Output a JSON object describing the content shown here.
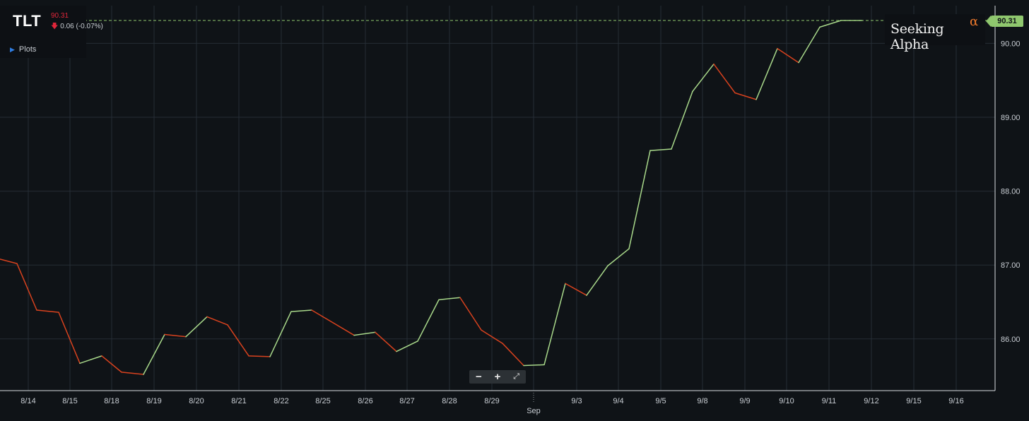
{
  "header": {
    "ticker": "TLT",
    "price": "90.31",
    "change": "0.06 (-0.07%)",
    "plots_label": "Plots"
  },
  "brand": {
    "name": "Seeking Alpha",
    "symbol": "α"
  },
  "price_tag": "90.31",
  "zoom": {
    "minus": "−",
    "plus": "+",
    "expand": "⤢"
  },
  "colors": {
    "background": "#0f1317",
    "grid": "#252d35",
    "up": "#a8d88a",
    "down": "#d9421e",
    "price_line": "#8fc76e"
  },
  "chart_data": {
    "type": "line",
    "symbol": "TLT",
    "x_tick_labels": [
      "8/14",
      "8/15",
      "8/18",
      "8/19",
      "8/20",
      "8/21",
      "8/22",
      "8/25",
      "8/26",
      "8/27",
      "8/28",
      "8/29",
      "Sep",
      "9/3",
      "9/4",
      "9/5",
      "9/8",
      "9/9",
      "9/10",
      "9/11",
      "9/12",
      "9/15",
      "9/16"
    ],
    "y_tick_labels": [
      "86.00",
      "87.00",
      "88.00",
      "89.00",
      "90.00"
    ],
    "ylim": [
      85.3,
      90.55
    ],
    "last_price": 90.31,
    "grid": true,
    "x": [
      "8/13 PM",
      "8/14 AM",
      "8/14 PM",
      "8/15 AM",
      "8/15 PM",
      "8/15 EOD",
      "8/18 AM",
      "8/18 PM",
      "8/19 AM",
      "8/19 PM",
      "8/20 AM",
      "8/20 PM",
      "8/21 AM",
      "8/21 PM",
      "8/22 AM",
      "8/22 PM",
      "8/25 AM",
      "8/25 PM",
      "8/26 AM",
      "8/26 PM",
      "8/27 AM",
      "8/27 PM",
      "8/28 AM",
      "8/28 PM",
      "8/29 AM",
      "8/29 PM",
      "9/2 AM",
      "9/2 PM",
      "9/3 AM",
      "9/3 PM",
      "9/4 AM",
      "9/4 PM",
      "9/5 AM",
      "9/5 PM",
      "9/8 AM",
      "9/8 PM",
      "9/9 AM",
      "9/9 PM",
      "9/10 AM",
      "9/10 PM",
      "9/11 AM",
      "9/11 PM"
    ],
    "values": [
      87.08,
      87.02,
      86.39,
      86.36,
      85.67,
      85.77,
      85.55,
      85.52,
      86.06,
      86.03,
      86.3,
      86.19,
      85.77,
      85.76,
      86.37,
      86.39,
      86.22,
      86.05,
      86.09,
      85.83,
      85.97,
      86.53,
      86.56,
      86.12,
      85.94,
      85.64,
      85.65,
      86.75,
      86.59,
      86.99,
      87.22,
      88.55,
      88.57,
      89.35,
      89.72,
      89.33,
      89.24,
      89.93,
      89.74,
      90.22,
      90.31,
      90.31
    ]
  }
}
